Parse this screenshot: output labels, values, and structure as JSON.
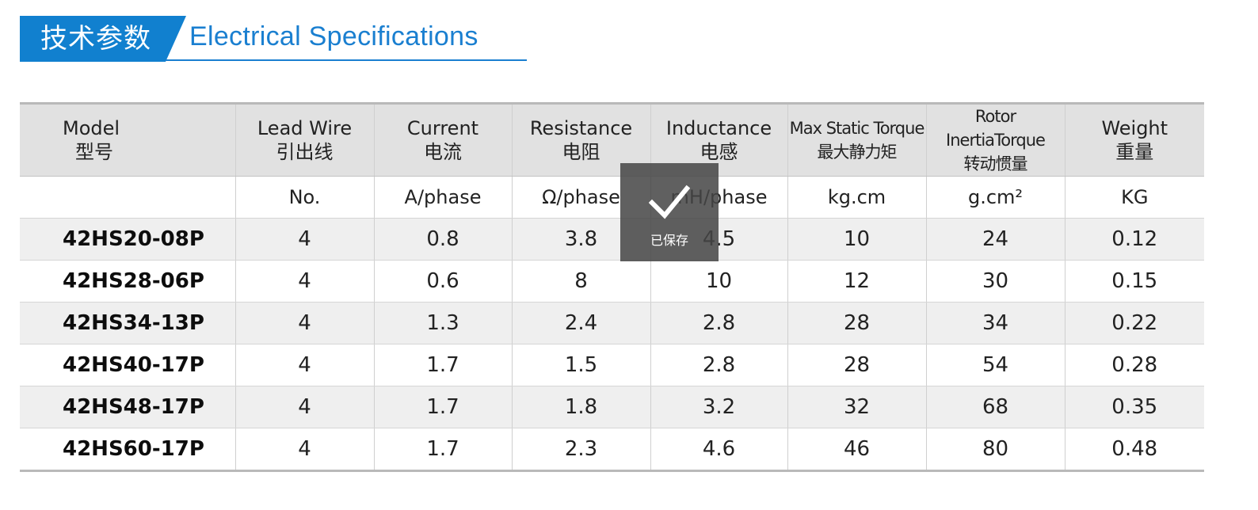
{
  "header": {
    "title_cn": "技术参数",
    "title_en": "Electrical Specifications",
    "accent_color": "#1180cf"
  },
  "table": {
    "columns": [
      {
        "en": "Model",
        "cn": "型号",
        "unit": ""
      },
      {
        "en": "Lead Wire",
        "cn": "引出线",
        "unit": "No."
      },
      {
        "en": "Current",
        "cn": "电流",
        "unit": "A/phase"
      },
      {
        "en": "Resistance",
        "cn": "电阻",
        "unit": "Ω/phase"
      },
      {
        "en": "Inductance",
        "cn": "电感",
        "unit": "mH/phase"
      },
      {
        "en": "Max  Static Torque",
        "cn": "最大静力矩",
        "unit": "kg.cm"
      },
      {
        "en": "Rotor InertiaTorque",
        "cn": "转动惯量",
        "unit": "g.cm²"
      },
      {
        "en": "Weight",
        "cn": "重量",
        "unit": "KG"
      }
    ],
    "rows": [
      [
        "42HS20-08P",
        "4",
        "0.8",
        "3.8",
        "4.5",
        "10",
        "24",
        "0.12"
      ],
      [
        "42HS28-06P",
        "4",
        "0.6",
        "8",
        "10",
        "12",
        "30",
        "0.15"
      ],
      [
        "42HS34-13P",
        "4",
        "1.3",
        "2.4",
        "2.8",
        "28",
        "34",
        "0.22"
      ],
      [
        "42HS40-17P",
        "4",
        "1.7",
        "1.5",
        "2.8",
        "28",
        "54",
        "0.28"
      ],
      [
        "42HS48-17P",
        "4",
        "1.7",
        "1.8",
        "3.2",
        "32",
        "68",
        "0.35"
      ],
      [
        "42HS60-17P",
        "4",
        "1.7",
        "2.3",
        "4.6",
        "46",
        "80",
        "0.48"
      ]
    ]
  },
  "toast": {
    "icon": "checkmark-icon",
    "text": "已保存"
  }
}
